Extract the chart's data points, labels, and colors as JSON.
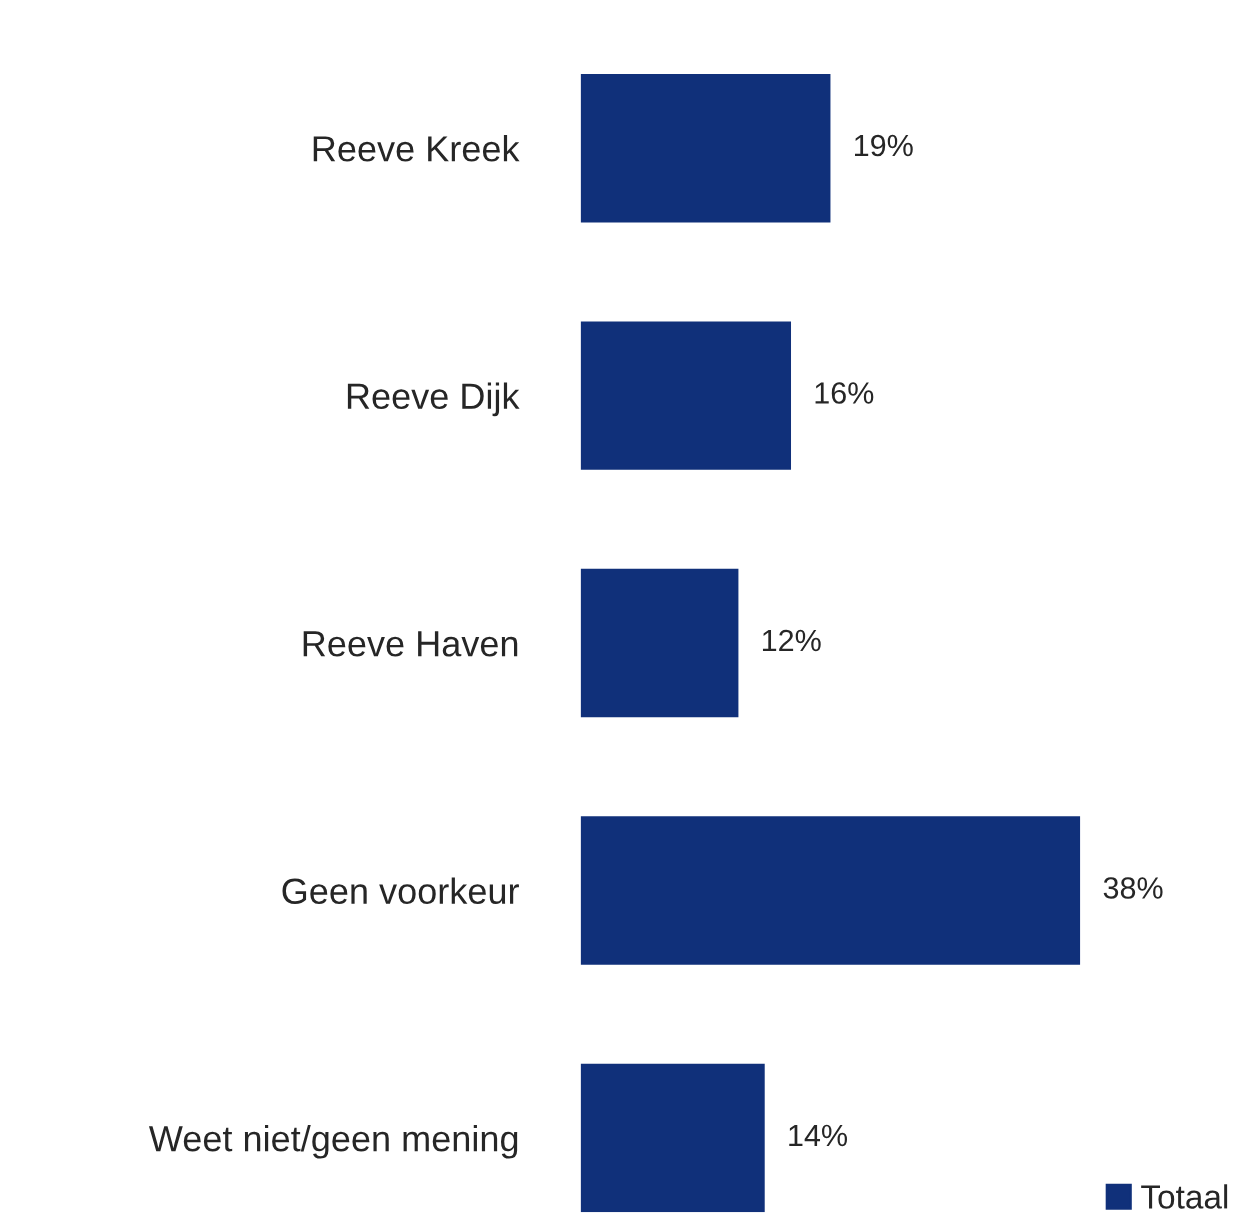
{
  "chart_data": {
    "type": "bar",
    "orientation": "horizontal",
    "categories": [
      "Reeve Kreek",
      "Reeve Dijk",
      "Reeve Haven",
      "Geen voorkeur",
      "Weet niet/geen mening"
    ],
    "series": [
      {
        "name": "Totaal",
        "color": "#10307a",
        "values": [
          19,
          16,
          12,
          38,
          14
        ],
        "value_labels": [
          "19%",
          "16%",
          "12%",
          "38%",
          "14%"
        ]
      }
    ],
    "legend": "bottom right",
    "grid": false
  }
}
